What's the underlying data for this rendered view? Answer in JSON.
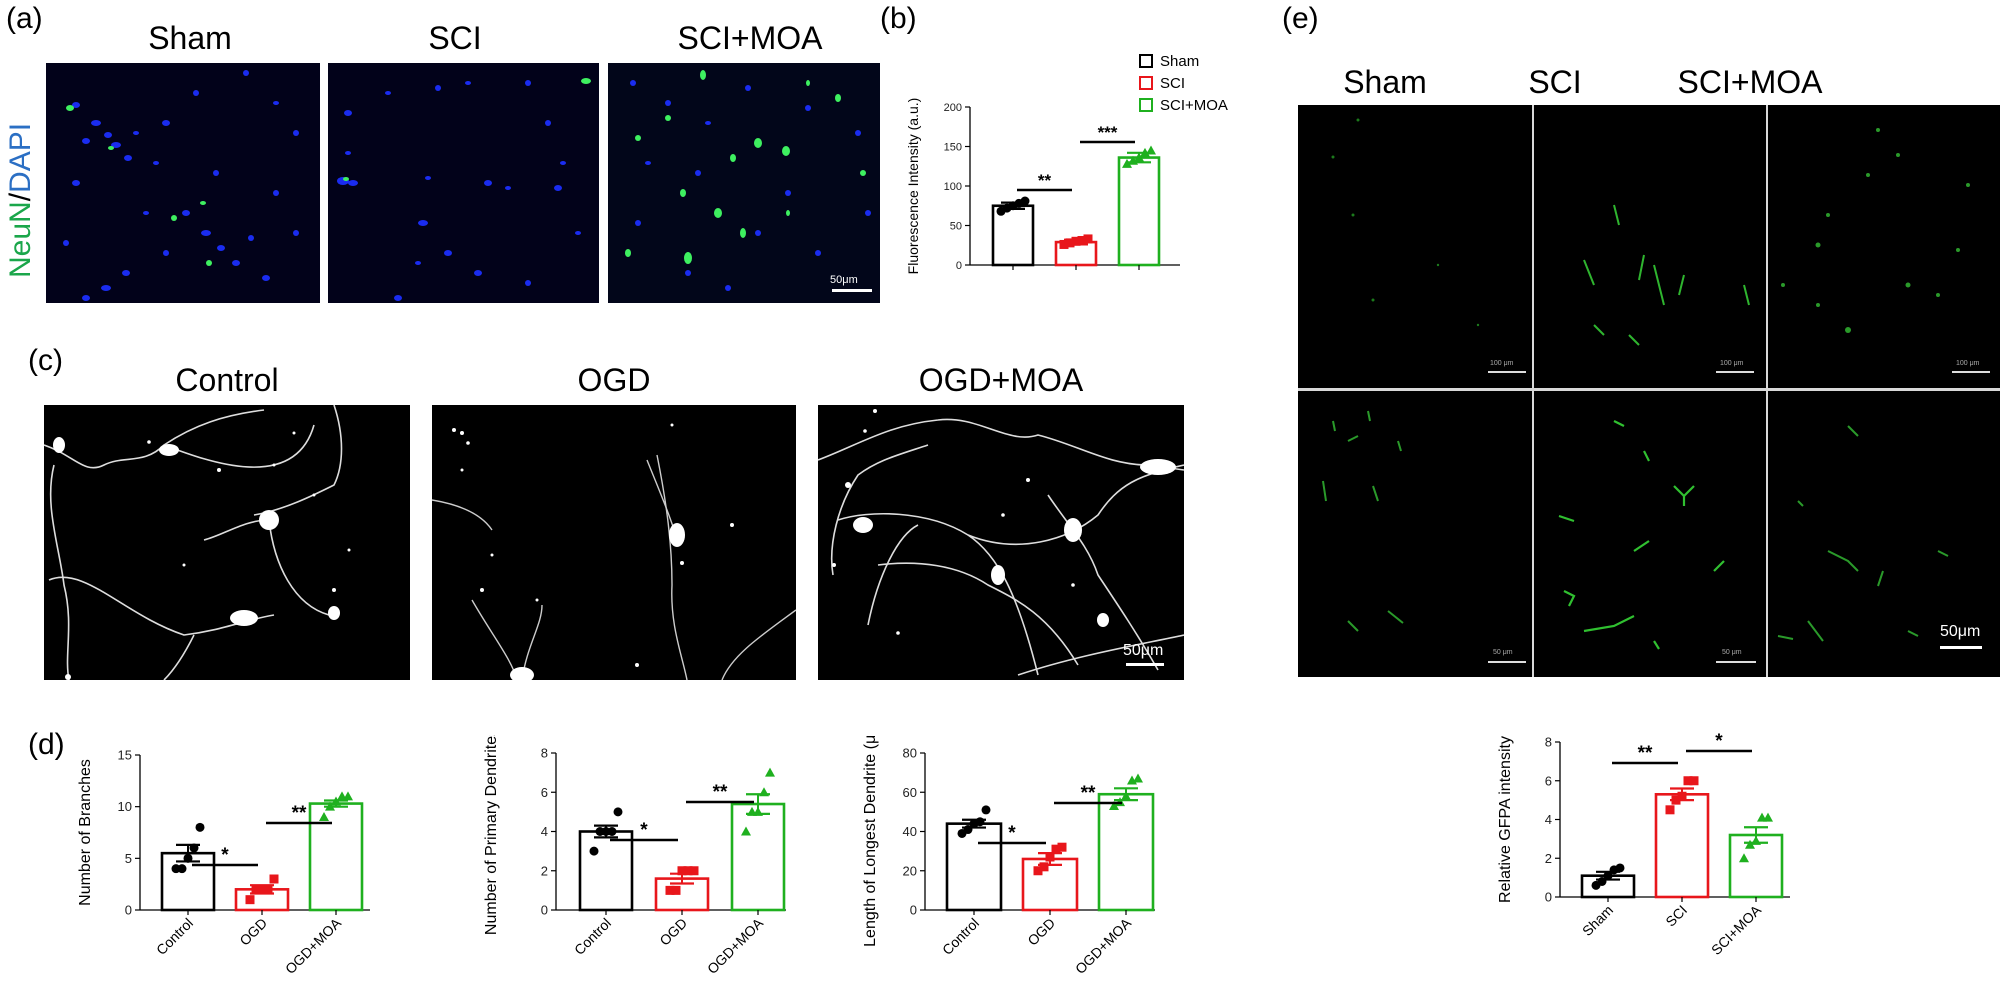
{
  "panels": {
    "a": {
      "label": "(a)",
      "y_label_green": "NeuN",
      "y_label_sep": "/",
      "y_label_blue": "DAPI",
      "columns": [
        "Sham",
        "SCI",
        "SCI+MOA"
      ],
      "scale_bar": "50μm"
    },
    "b": {
      "label": "(b)"
    },
    "c": {
      "label": "(c)",
      "columns": [
        "Control",
        "OGD",
        "OGD+MOA"
      ],
      "scale_bar": "50μm"
    },
    "d": {
      "label": "(d)"
    },
    "e": {
      "label": "(e)",
      "columns": [
        "Sham",
        "SCI",
        "SCI+MOA"
      ],
      "scale_bar": "50μm",
      "small_scale_top": "100 μm",
      "small_scale_bottom": "50 μm"
    }
  },
  "colors": {
    "sham": "#000000",
    "sci": "#e8161b",
    "moa": "#1fb01f",
    "neun_green": "#1aa64a",
    "dapi_blue": "#2b6fc4"
  },
  "chart_data": [
    {
      "id": "b",
      "type": "bar",
      "title": "",
      "categories": [
        "Sham",
        "SCI",
        "SCI+MOA"
      ],
      "values": [
        75,
        29,
        136
      ],
      "errors": [
        4,
        3,
        6
      ],
      "points": [
        [
          68,
          72,
          75,
          78,
          81
        ],
        [
          26,
          28,
          30,
          31,
          33
        ],
        [
          128,
          132,
          136,
          142,
          145
        ]
      ],
      "ylabel": "Fluorescence Intensity (a.u.)",
      "xlabel": "",
      "ylim": [
        0,
        200
      ],
      "yticks": [
        0,
        50,
        100,
        150,
        200
      ],
      "legend": [
        "Sham",
        "SCI",
        "SCI+MOA"
      ],
      "legend_position": "top-right",
      "significance": [
        {
          "from": 0,
          "to": 1,
          "label": "**"
        },
        {
          "from": 1,
          "to": 2,
          "label": "***"
        }
      ],
      "grid": false
    },
    {
      "id": "d1",
      "type": "bar",
      "categories": [
        "Control",
        "OGD",
        "OGD+MOA"
      ],
      "values": [
        5.5,
        2.0,
        10.3
      ],
      "errors": [
        0.8,
        0.4,
        0.3
      ],
      "points": [
        [
          4,
          4,
          5,
          6,
          8
        ],
        [
          1,
          2,
          2,
          2,
          3
        ],
        [
          9,
          10,
          10.5,
          11,
          11
        ]
      ],
      "ylabel": "Number of Branches",
      "ylim": [
        0,
        15
      ],
      "yticks": [
        0,
        5,
        10,
        15
      ],
      "significance": [
        {
          "from": 0,
          "to": 1,
          "label": "*"
        },
        {
          "from": 1,
          "to": 2,
          "label": "**"
        }
      ],
      "grid": false
    },
    {
      "id": "d2",
      "type": "bar",
      "categories": [
        "Control",
        "OGD",
        "OGD+MOA"
      ],
      "values": [
        4.0,
        1.6,
        5.4
      ],
      "errors": [
        0.3,
        0.25,
        0.5
      ],
      "points": [
        [
          3,
          4,
          4,
          4,
          5
        ],
        [
          1,
          1,
          2,
          2,
          2
        ],
        [
          4,
          5,
          5,
          6,
          7
        ]
      ],
      "ylabel": "Number of Primary Dendrites",
      "ylim": [
        0,
        8
      ],
      "yticks": [
        0,
        2,
        4,
        6,
        8
      ],
      "significance": [
        {
          "from": 0,
          "to": 1,
          "label": "*"
        },
        {
          "from": 1,
          "to": 2,
          "label": "**"
        }
      ],
      "grid": false
    },
    {
      "id": "d3",
      "type": "bar",
      "categories": [
        "Control",
        "OGD",
        "OGD+MOA"
      ],
      "values": [
        44,
        26,
        59
      ],
      "errors": [
        2,
        3,
        3
      ],
      "points": [
        [
          39,
          41,
          44,
          45,
          51
        ],
        [
          20,
          22,
          27,
          31,
          32
        ],
        [
          53,
          55,
          58,
          66,
          67
        ]
      ],
      "ylabel": "Length of Longest Dendrite (μm)",
      "ylim": [
        0,
        80
      ],
      "yticks": [
        0,
        20,
        40,
        60,
        80
      ],
      "significance": [
        {
          "from": 0,
          "to": 1,
          "label": "*"
        },
        {
          "from": 1,
          "to": 2,
          "label": "**"
        }
      ],
      "grid": false
    },
    {
      "id": "e",
      "type": "bar",
      "categories": [
        "Sham",
        "SCI",
        "SCI+MOA"
      ],
      "values": [
        1.1,
        5.3,
        3.2
      ],
      "errors": [
        0.2,
        0.3,
        0.4
      ],
      "points": [
        [
          0.6,
          0.8,
          1.1,
          1.4,
          1.5
        ],
        [
          4.5,
          5.0,
          5.2,
          6.0,
          6.0
        ],
        [
          2.0,
          2.7,
          2.9,
          4.1,
          4.1
        ]
      ],
      "ylabel": "Relative GFPA intensity",
      "ylim": [
        0,
        8
      ],
      "yticks": [
        0,
        2,
        4,
        6,
        8
      ],
      "significance": [
        {
          "from": 0,
          "to": 1,
          "label": "**"
        },
        {
          "from": 1,
          "to": 2,
          "label": "*"
        }
      ],
      "grid": false
    }
  ]
}
